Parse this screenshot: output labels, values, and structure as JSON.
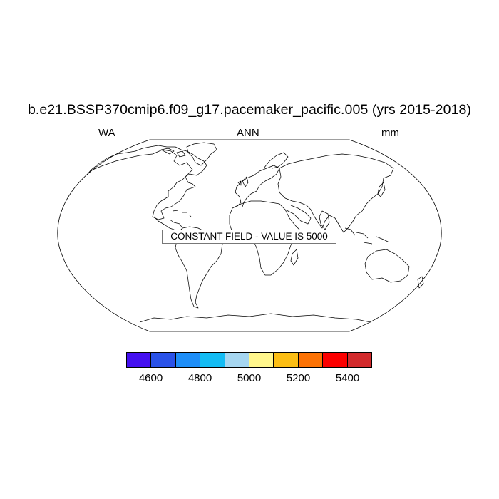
{
  "title": "b.e21.BSSP370cmip6.f09_g17.pacemaker_pacific.005 (yrs 2015-2018)",
  "left_label": "WA",
  "center_label": "ANN",
  "right_label": "mm",
  "constant_field_text": "CONSTANT FIELD - VALUE IS 5000",
  "projection": "Robinson",
  "colorbar": {
    "colors": [
      "#4410f0",
      "#2a52e8",
      "#1e8ef8",
      "#14bcf4",
      "#a6d6f0",
      "#fff68c",
      "#fcbe14",
      "#fc7204",
      "#fc0000",
      "#d22a2c"
    ],
    "labels": [
      "4600",
      "4800",
      "5000",
      "5200",
      "5400"
    ]
  }
}
